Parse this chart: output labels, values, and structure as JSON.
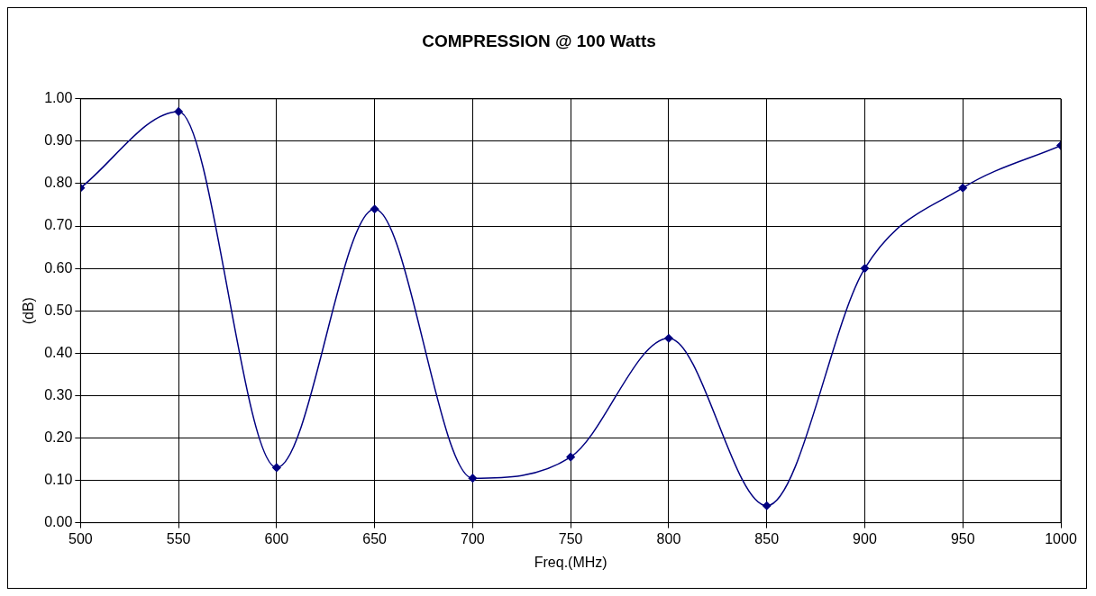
{
  "chart_data": {
    "type": "line",
    "title": "COMPRESSION @ 100 Watts",
    "xlabel": "Freq.(MHz)",
    "ylabel": "(dB)",
    "x": [
      500,
      550,
      600,
      650,
      700,
      750,
      800,
      850,
      900,
      950,
      1000
    ],
    "series": [
      {
        "color": "#000080",
        "values": [
          0.79,
          0.97,
          0.13,
          0.74,
          0.105,
          0.155,
          0.435,
          0.04,
          0.6,
          0.79,
          0.89
        ]
      }
    ],
    "xlim": [
      500,
      1000
    ],
    "xticks": [
      500,
      550,
      600,
      650,
      700,
      750,
      800,
      850,
      900,
      950,
      1000
    ],
    "ylim": [
      0,
      1
    ],
    "yticks": [
      {
        "value": 0,
        "label": "0.00"
      },
      {
        "value": 0.1,
        "label": "0.10"
      },
      {
        "value": 0.2,
        "label": "0.20"
      },
      {
        "value": 0.3,
        "label": "0.30"
      },
      {
        "value": 0.4,
        "label": "0.40"
      },
      {
        "value": 0.5,
        "label": "0.50"
      },
      {
        "value": 0.6,
        "label": "0.60"
      },
      {
        "value": 0.7,
        "label": "0.70"
      },
      {
        "value": 0.8,
        "label": "0.80"
      },
      {
        "value": 0.9,
        "label": "0.90"
      },
      {
        "value": 1,
        "label": "1.00"
      }
    ],
    "grid": true,
    "legend": false,
    "marker": "diamond",
    "line_style": "solid"
  }
}
